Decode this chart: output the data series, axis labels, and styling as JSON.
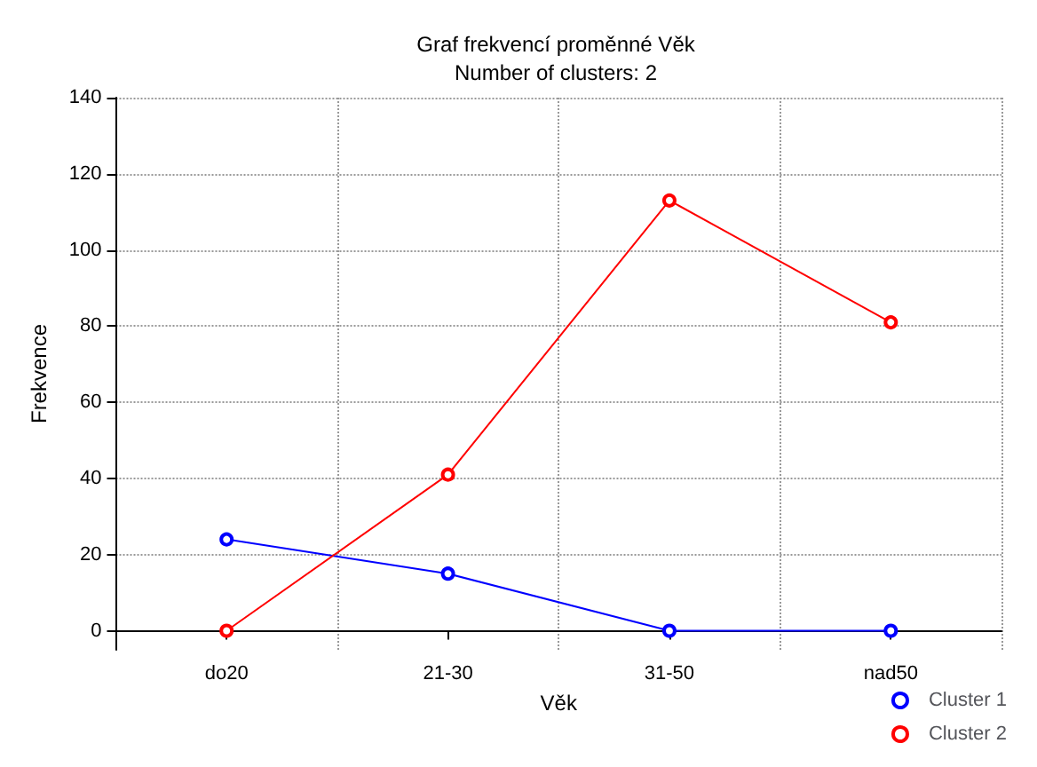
{
  "chart_data": {
    "type": "line",
    "title": "Graf frekvencí proměnné Věk",
    "subtitle": "Number of clusters: 2",
    "xlabel": "Věk",
    "ylabel": "Frekvence",
    "categories": [
      "do20",
      "21-30",
      "31-50",
      "nad50"
    ],
    "series": [
      {
        "name": "Cluster 1",
        "color": "#0000ff",
        "values": [
          24,
          15,
          0,
          0
        ]
      },
      {
        "name": "Cluster 2",
        "color": "#ff0000",
        "values": [
          0,
          41,
          113,
          81
        ]
      }
    ],
    "ylim": [
      -5,
      140
    ],
    "yticks": [
      0,
      20,
      40,
      60,
      80,
      100,
      120,
      140
    ],
    "grid": true,
    "legend": "bottom right",
    "marker": "circle",
    "line_style": "solid"
  }
}
